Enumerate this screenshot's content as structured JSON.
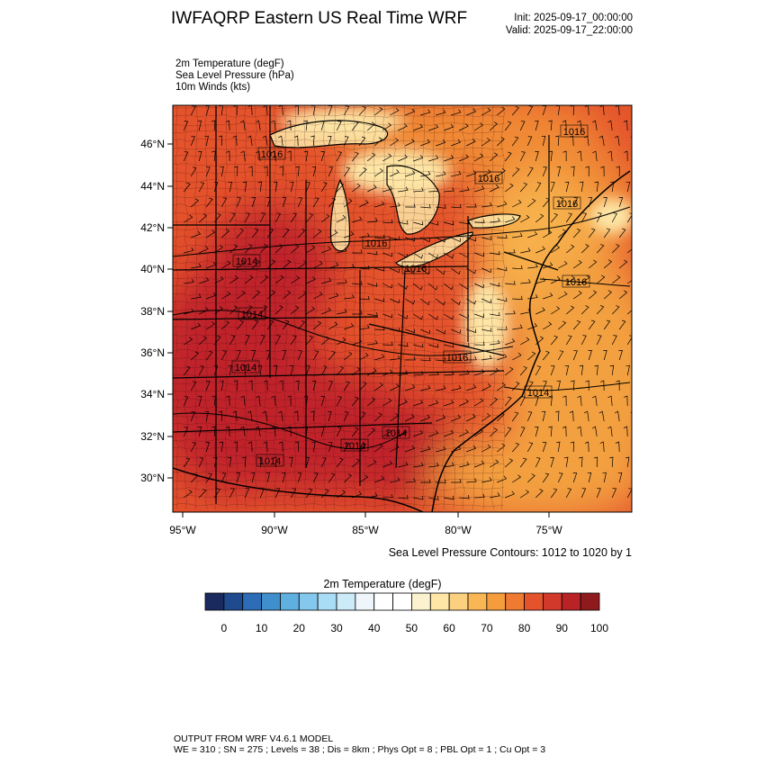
{
  "header": {
    "title": "IWFAQRP Eastern US Real Time WRF",
    "init": "Init: 2025-09-17_00:00:00",
    "valid": "Valid: 2025-09-17_22:00:00"
  },
  "fields": [
    "2m Temperature   (degF)",
    "Sea Level Pressure   (hPa)",
    "10m Winds   (kts)"
  ],
  "map": {
    "lat_ticks": [
      "30°N",
      "32°N",
      "34°N",
      "36°N",
      "38°N",
      "40°N",
      "42°N",
      "44°N",
      "46°N"
    ],
    "lon_ticks": [
      "95°W",
      "90°W",
      "85°W",
      "80°W",
      "75°W"
    ],
    "isobar_labels": [
      "1016",
      "1016",
      "1016",
      "1016",
      "1016",
      "1016",
      "1016",
      "1014",
      "1014",
      "1014",
      "1014",
      "1014",
      "1014",
      "1014",
      "1016"
    ],
    "colors": {
      "hot": "#c0232a",
      "warm": "#e4532c",
      "mid": "#f08a35",
      "mild": "#f7b04c",
      "cool": "#fde6a6",
      "water": "#f3a041"
    }
  },
  "contour_note": "Sea Level Pressure Contours: 1012 to 1020 by 1",
  "colorbar": {
    "title": "2m Temperature  (degF)",
    "colors": [
      "#1a2a5e",
      "#1f4a8e",
      "#2d6db7",
      "#3f8fcc",
      "#5fb0e0",
      "#85c8ee",
      "#a9dcf5",
      "#cdeaf8",
      "#eef6fb",
      "#ffffff",
      "#ffffff",
      "#fdf2cf",
      "#fde6a6",
      "#fbd07e",
      "#f9b654",
      "#f59c3c",
      "#ef7a32",
      "#e4532c",
      "#d13a2a",
      "#b92326",
      "#8f1a1e"
    ],
    "labels": [
      "0",
      "10",
      "20",
      "30",
      "40",
      "50",
      "60",
      "70",
      "80",
      "90",
      "100"
    ]
  },
  "footer": {
    "line1": "OUTPUT FROM WRF V4.6.1 MODEL",
    "line2": "WE = 310 ; SN = 275 ; Levels = 38 ; Dis = 8km ; Phys Opt = 8 ; PBL Opt = 1 ; Cu Opt = 3"
  }
}
